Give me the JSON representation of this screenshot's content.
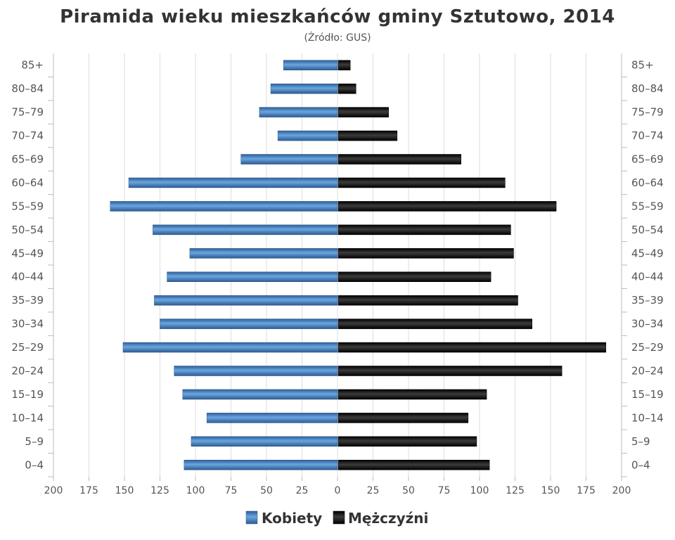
{
  "chart_data": {
    "type": "bar",
    "orientation": "horizontal-pyramid",
    "title": "Piramida wieku mieszkańców gminy Sztutowo, 2014",
    "subtitle": "(Źródło: GUS)",
    "categories": [
      "85+",
      "80–84",
      "75–79",
      "70–74",
      "65–69",
      "60–64",
      "55–59",
      "50–54",
      "45–49",
      "40–44",
      "35–39",
      "30–34",
      "25–29",
      "20–24",
      "15–19",
      "10–14",
      "5–9",
      "0–4"
    ],
    "series": [
      {
        "name": "Kobiety",
        "color": "#4a86c5",
        "values": [
          38,
          47,
          55,
          42,
          68,
          147,
          160,
          130,
          104,
          120,
          129,
          125,
          151,
          115,
          109,
          92,
          103,
          108
        ]
      },
      {
        "name": "Mężczyźni",
        "color": "#222222",
        "values": [
          9,
          13,
          36,
          42,
          87,
          118,
          154,
          122,
          124,
          108,
          127,
          137,
          189,
          158,
          105,
          92,
          98,
          107
        ]
      }
    ],
    "xlim": [
      -200,
      200
    ],
    "x_ticks": [
      "200",
      "175",
      "150",
      "125",
      "100",
      "75",
      "50",
      "25",
      "0",
      "25",
      "50",
      "75",
      "100",
      "125",
      "150",
      "175",
      "200"
    ],
    "x_tick_values": [
      -200,
      -175,
      -150,
      -125,
      -100,
      -75,
      -50,
      -25,
      0,
      25,
      50,
      75,
      100,
      125,
      150,
      175,
      200
    ],
    "grid": true,
    "legend_position": "bottom-center"
  }
}
